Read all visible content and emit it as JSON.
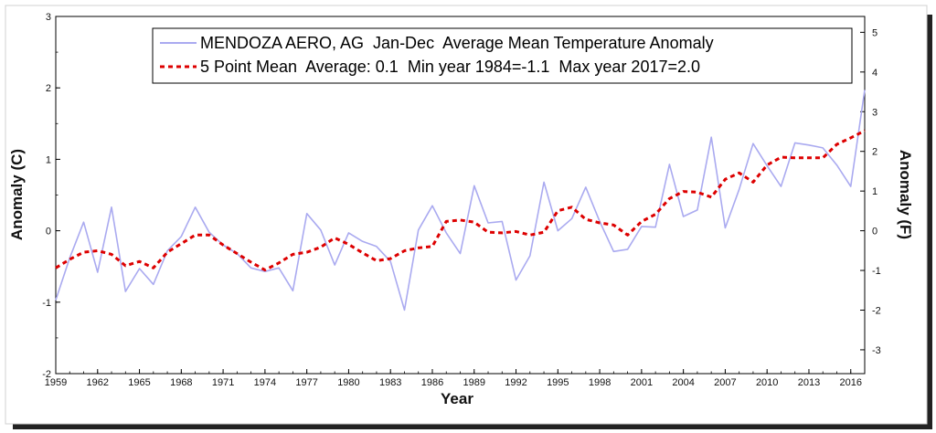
{
  "chart_data": {
    "type": "line",
    "xlabel": "Year",
    "ylabel_left": "Anomaly (C)",
    "ylabel_right": "Anomaly (F)",
    "xlim": [
      1959,
      2017
    ],
    "ylim_left": [
      -2,
      3
    ],
    "ylim_right": [
      -3.6,
      5.4
    ],
    "x_ticks": [
      "1959",
      "1962",
      "1965",
      "1968",
      "1971",
      "1974",
      "1977",
      "1980",
      "1983",
      "1986",
      "1989",
      "1992",
      "1995",
      "1998",
      "2001",
      "2004",
      "2007",
      "2010",
      "2013",
      "2016"
    ],
    "y_ticks_left": [
      "-2",
      "-1",
      "0",
      "1",
      "2",
      "3"
    ],
    "y_ticks_right": [
      "-3",
      "-2",
      "-1",
      "0",
      "1",
      "2",
      "3",
      "4",
      "5"
    ],
    "grid": false,
    "legend_position": "top-right",
    "x": [
      1959,
      1960,
      1961,
      1962,
      1963,
      1964,
      1965,
      1966,
      1967,
      1968,
      1969,
      1970,
      1971,
      1972,
      1973,
      1974,
      1975,
      1976,
      1977,
      1978,
      1979,
      1980,
      1981,
      1982,
      1983,
      1984,
      1985,
      1986,
      1987,
      1988,
      1989,
      1990,
      1991,
      1992,
      1993,
      1994,
      1995,
      1996,
      1997,
      1998,
      1999,
      2000,
      2001,
      2002,
      2003,
      2004,
      2005,
      2006,
      2007,
      2008,
      2009,
      2010,
      2011,
      2012,
      2013,
      2014,
      2015,
      2016,
      2017
    ],
    "series": [
      {
        "name": "MENDOZA AERO, AG  Jan-Dec  Average Mean Temperature Anomaly",
        "color": "#aaaaf0",
        "style": "solid",
        "values": [
          -0.97,
          -0.38,
          0.12,
          -0.58,
          0.33,
          -0.85,
          -0.53,
          -0.75,
          -0.28,
          -0.08,
          0.33,
          -0.02,
          -0.2,
          -0.32,
          -0.52,
          -0.57,
          -0.52,
          -0.84,
          0.24,
          0.01,
          -0.48,
          -0.03,
          -0.15,
          -0.22,
          -0.43,
          -1.11,
          0.01,
          0.35,
          -0.03,
          -0.32,
          0.63,
          0.11,
          0.13,
          -0.69,
          -0.35,
          0.68,
          0.0,
          0.17,
          0.61,
          0.13,
          -0.29,
          -0.26,
          0.06,
          0.05,
          0.93,
          0.2,
          0.29,
          1.31,
          0.04,
          0.58,
          1.22,
          0.91,
          0.62,
          1.23,
          1.2,
          1.16,
          0.92,
          0.62,
          1.97
        ]
      },
      {
        "name": "5 Point Mean  Average: 0.1  Min year 1984=-1.1  Max year 2017=2.0",
        "color": "#dd0000",
        "style": "dashed",
        "values": [
          -0.52,
          -0.4,
          -0.3,
          -0.28,
          -0.33,
          -0.49,
          -0.43,
          -0.52,
          -0.3,
          -0.18,
          -0.06,
          -0.06,
          -0.2,
          -0.32,
          -0.44,
          -0.55,
          -0.45,
          -0.33,
          -0.3,
          -0.23,
          -0.1,
          -0.19,
          -0.31,
          -0.42,
          -0.39,
          -0.28,
          -0.24,
          -0.22,
          0.13,
          0.15,
          0.12,
          -0.02,
          -0.03,
          -0.01,
          -0.06,
          -0.02,
          0.28,
          0.33,
          0.16,
          0.11,
          0.08,
          -0.06,
          0.13,
          0.23,
          0.45,
          0.55,
          0.54,
          0.47,
          0.72,
          0.81,
          0.68,
          0.92,
          1.03,
          1.02,
          1.02,
          1.02,
          1.21,
          1.3,
          1.4
        ]
      }
    ]
  }
}
